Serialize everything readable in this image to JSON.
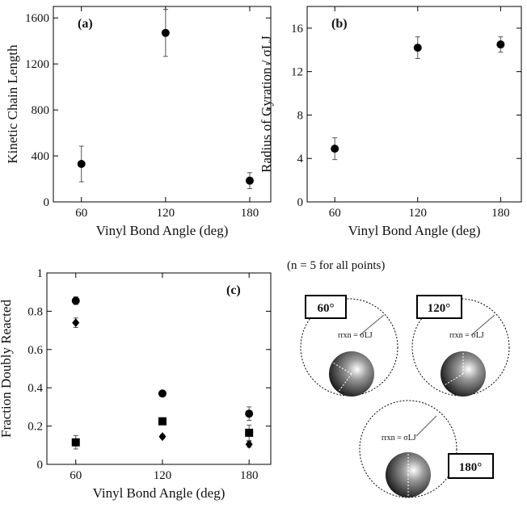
{
  "chart_data": [
    {
      "type": "scatter",
      "panel": "(a)",
      "xlabel": "Vinyl Bond Angle (deg)",
      "ylabel": "Kinetic Chain Length",
      "x": [
        60,
        120,
        180
      ],
      "values": [
        330,
        1470,
        185
      ],
      "errors": [
        155,
        205,
        70
      ],
      "marker": "circle",
      "color": "#000000",
      "xlim": [
        40,
        195
      ],
      "ylim": [
        0,
        1700
      ],
      "xticks": [
        60,
        120,
        180
      ],
      "yticks": [
        0,
        400,
        800,
        1200,
        1600
      ]
    },
    {
      "type": "scatter",
      "panel": "(b)",
      "xlabel": "Vinyl Bond Angle (deg)",
      "ylabel": "Radius of Gyration / σLJ",
      "x": [
        60,
        120,
        180
      ],
      "values": [
        4.9,
        14.2,
        14.5
      ],
      "errors": [
        1.0,
        1.0,
        0.7
      ],
      "marker": "circle",
      "color": "#000000",
      "xlim": [
        40,
        195
      ],
      "ylim": [
        0,
        18
      ],
      "xticks": [
        60,
        120,
        180
      ],
      "yticks": [
        0,
        4,
        8,
        12,
        16
      ]
    },
    {
      "type": "scatter",
      "panel": "(c)",
      "xlabel": "Vinyl Bond Angle (deg)",
      "ylabel": "Fraction Doubly Reacted",
      "x": [
        60,
        120,
        180
      ],
      "series": [
        {
          "marker": "circle",
          "color": "#000000",
          "values": [
            0.855,
            0.37,
            0.265
          ],
          "errors": [
            0.02,
            0.01,
            0.035
          ]
        },
        {
          "marker": "diamond",
          "color": "#000000",
          "values": [
            0.74,
            0.145,
            0.105
          ],
          "errors": [
            0.025,
            0.01,
            0.015
          ]
        },
        {
          "marker": "square",
          "color": "#000000",
          "values": [
            0.115,
            0.225,
            0.165
          ],
          "errors": [
            0.035,
            0.015,
            0.04
          ]
        }
      ],
      "xlim": [
        40,
        195
      ],
      "ylim": [
        0,
        1
      ],
      "xticks": [
        60,
        120,
        180
      ],
      "yticks": [
        0,
        0.2,
        0.4,
        0.6,
        0.8,
        1
      ]
    }
  ],
  "diagram": {
    "note": "(n = 5 for all points)",
    "angles": [
      "60°",
      "120°",
      "180°"
    ],
    "radius_labels": [
      "rrxn = σLJ",
      "rrxn = σLJ",
      "rrxn = σLJ"
    ]
  }
}
